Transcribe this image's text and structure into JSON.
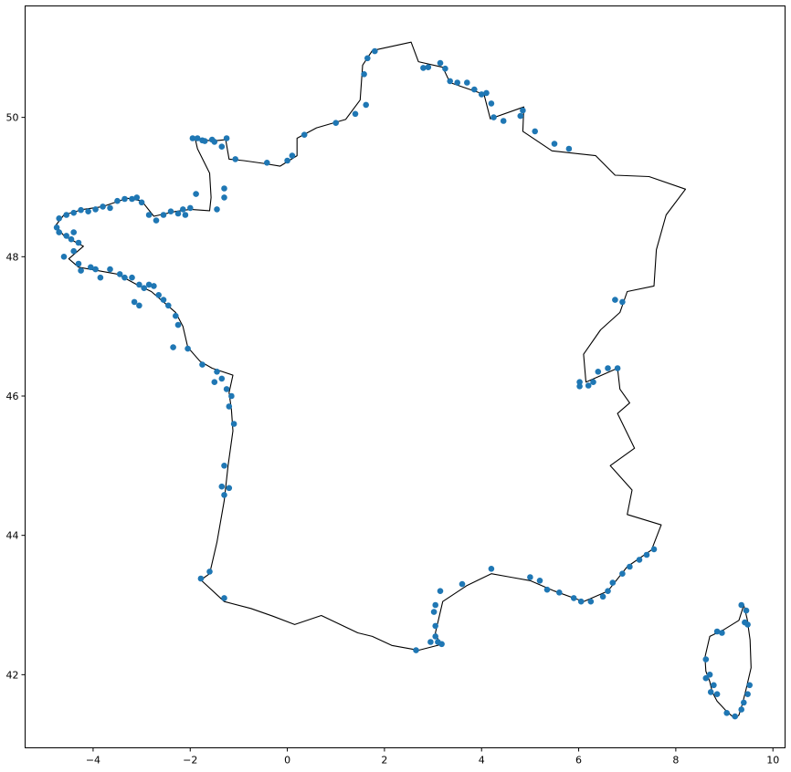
{
  "chart_data": {
    "type": "scatter",
    "title": "",
    "xlabel": "",
    "ylabel": "",
    "xlim": [
      -5.4,
      10.25
    ],
    "ylim": [
      40.95,
      51.6
    ],
    "xticks": [
      -4,
      -2,
      0,
      2,
      4,
      6,
      8,
      10
    ],
    "yticks": [
      42,
      44,
      46,
      48,
      50
    ],
    "grid": false,
    "legend": "none",
    "marker_color": "#1f77b4",
    "outline_color": "#000000",
    "outlines": [
      {
        "name": "mainland",
        "points": [
          [
            -1.78,
            43.36
          ],
          [
            -1.6,
            43.45
          ],
          [
            -1.45,
            43.9
          ],
          [
            -1.3,
            44.5
          ],
          [
            -1.22,
            45.0
          ],
          [
            -1.12,
            45.5
          ],
          [
            -1.15,
            45.8
          ],
          [
            -1.2,
            46.05
          ],
          [
            -1.12,
            46.3
          ],
          [
            -1.55,
            46.4
          ],
          [
            -1.8,
            46.5
          ],
          [
            -2.05,
            46.7
          ],
          [
            -2.15,
            47.0
          ],
          [
            -2.3,
            47.2
          ],
          [
            -2.55,
            47.35
          ],
          [
            -2.8,
            47.5
          ],
          [
            -3.1,
            47.6
          ],
          [
            -3.5,
            47.75
          ],
          [
            -3.9,
            47.8
          ],
          [
            -4.3,
            47.85
          ],
          [
            -4.5,
            47.97
          ],
          [
            -4.2,
            48.15
          ],
          [
            -4.6,
            48.3
          ],
          [
            -4.77,
            48.45
          ],
          [
            -4.6,
            48.6
          ],
          [
            -4.2,
            48.68
          ],
          [
            -3.8,
            48.72
          ],
          [
            -3.3,
            48.84
          ],
          [
            -3.0,
            48.8
          ],
          [
            -2.75,
            48.58
          ],
          [
            -2.3,
            48.65
          ],
          [
            -2.0,
            48.68
          ],
          [
            -1.6,
            48.66
          ],
          [
            -1.57,
            48.85
          ],
          [
            -1.6,
            49.2
          ],
          [
            -1.85,
            49.55
          ],
          [
            -1.9,
            49.7
          ],
          [
            -1.55,
            49.66
          ],
          [
            -1.27,
            49.68
          ],
          [
            -1.2,
            49.4
          ],
          [
            -0.9,
            49.38
          ],
          [
            -0.5,
            49.34
          ],
          [
            -0.15,
            49.3
          ],
          [
            0.2,
            49.45
          ],
          [
            0.2,
            49.7
          ],
          [
            0.6,
            49.85
          ],
          [
            1.2,
            49.97
          ],
          [
            1.5,
            50.25
          ],
          [
            1.55,
            50.75
          ],
          [
            1.75,
            50.96
          ],
          [
            2.55,
            51.08
          ],
          [
            2.7,
            50.8
          ],
          [
            3.2,
            50.72
          ],
          [
            3.35,
            50.5
          ],
          [
            4.05,
            50.33
          ],
          [
            4.18,
            49.98
          ],
          [
            4.87,
            50.15
          ],
          [
            4.85,
            49.8
          ],
          [
            5.45,
            49.52
          ],
          [
            6.35,
            49.45
          ],
          [
            6.75,
            49.17
          ],
          [
            7.45,
            49.15
          ],
          [
            8.2,
            48.97
          ],
          [
            7.8,
            48.6
          ],
          [
            7.6,
            48.1
          ],
          [
            7.55,
            47.58
          ],
          [
            7.0,
            47.5
          ],
          [
            6.85,
            47.2
          ],
          [
            6.45,
            46.95
          ],
          [
            6.1,
            46.6
          ],
          [
            6.15,
            46.2
          ],
          [
            6.8,
            46.4
          ],
          [
            6.85,
            46.1
          ],
          [
            7.05,
            45.9
          ],
          [
            6.8,
            45.75
          ],
          [
            7.15,
            45.25
          ],
          [
            6.65,
            45.0
          ],
          [
            7.1,
            44.65
          ],
          [
            7.0,
            44.3
          ],
          [
            7.7,
            44.15
          ],
          [
            7.5,
            43.79
          ],
          [
            7.0,
            43.55
          ],
          [
            6.6,
            43.2
          ],
          [
            6.1,
            43.05
          ],
          [
            5.5,
            43.2
          ],
          [
            5.0,
            43.35
          ],
          [
            4.6,
            43.4
          ],
          [
            4.2,
            43.45
          ],
          [
            3.7,
            43.28
          ],
          [
            3.2,
            43.05
          ],
          [
            3.05,
            42.6
          ],
          [
            3.15,
            42.43
          ],
          [
            2.7,
            42.35
          ],
          [
            2.15,
            42.42
          ],
          [
            1.75,
            42.55
          ],
          [
            1.45,
            42.6
          ],
          [
            0.7,
            42.85
          ],
          [
            0.15,
            42.72
          ],
          [
            -0.3,
            42.84
          ],
          [
            -0.75,
            42.95
          ],
          [
            -1.3,
            43.05
          ],
          [
            -1.78,
            43.36
          ]
        ]
      },
      {
        "name": "corsica",
        "points": [
          [
            9.4,
            43.0
          ],
          [
            9.47,
            42.8
          ],
          [
            9.53,
            42.5
          ],
          [
            9.55,
            42.1
          ],
          [
            9.45,
            41.8
          ],
          [
            9.38,
            41.6
          ],
          [
            9.3,
            41.42
          ],
          [
            9.22,
            41.37
          ],
          [
            9.05,
            41.47
          ],
          [
            8.85,
            41.62
          ],
          [
            8.75,
            41.75
          ],
          [
            8.7,
            41.9
          ],
          [
            8.62,
            42.05
          ],
          [
            8.6,
            42.25
          ],
          [
            8.7,
            42.55
          ],
          [
            9.0,
            42.65
          ],
          [
            9.3,
            42.78
          ],
          [
            9.4,
            43.0
          ]
        ]
      }
    ],
    "points": [
      [
        1.65,
        50.85
      ],
      [
        1.58,
        50.62
      ],
      [
        1.62,
        50.18
      ],
      [
        1.8,
        50.95
      ],
      [
        2.8,
        50.71
      ],
      [
        2.9,
        50.72
      ],
      [
        3.15,
        50.78
      ],
      [
        3.25,
        50.7
      ],
      [
        3.35,
        50.52
      ],
      [
        3.5,
        50.5
      ],
      [
        3.7,
        50.5
      ],
      [
        3.85,
        50.4
      ],
      [
        4.1,
        50.35
      ],
      [
        4.0,
        50.33
      ],
      [
        4.2,
        50.2
      ],
      [
        4.25,
        50.0
      ],
      [
        4.45,
        49.95
      ],
      [
        4.85,
        50.1
      ],
      [
        4.8,
        50.02
      ],
      [
        5.1,
        49.8
      ],
      [
        5.5,
        49.62
      ],
      [
        5.8,
        49.55
      ],
      [
        1.4,
        50.05
      ],
      [
        1.0,
        49.92
      ],
      [
        0.35,
        49.75
      ],
      [
        0.1,
        49.45
      ],
      [
        0.0,
        49.38
      ],
      [
        -0.42,
        49.35
      ],
      [
        -1.07,
        49.4
      ],
      [
        -1.25,
        49.7
      ],
      [
        -1.35,
        49.58
      ],
      [
        -1.55,
        49.68
      ],
      [
        -1.75,
        49.67
      ],
      [
        -1.95,
        49.7
      ],
      [
        -1.85,
        49.7
      ],
      [
        -1.7,
        49.66
      ],
      [
        -1.5,
        49.65
      ],
      [
        -1.3,
        48.85
      ],
      [
        -1.3,
        48.98
      ],
      [
        -1.88,
        48.9
      ],
      [
        -1.45,
        48.68
      ],
      [
        -2.0,
        48.7
      ],
      [
        -2.1,
        48.6
      ],
      [
        -2.15,
        48.68
      ],
      [
        -2.25,
        48.62
      ],
      [
        -2.4,
        48.65
      ],
      [
        -2.55,
        48.6
      ],
      [
        -2.7,
        48.52
      ],
      [
        -2.85,
        48.6
      ],
      [
        -3.0,
        48.78
      ],
      [
        -3.1,
        48.85
      ],
      [
        -3.2,
        48.83
      ],
      [
        -3.35,
        48.83
      ],
      [
        -3.5,
        48.8
      ],
      [
        -3.65,
        48.7
      ],
      [
        -3.8,
        48.72
      ],
      [
        -3.95,
        48.68
      ],
      [
        -4.1,
        48.65
      ],
      [
        -4.25,
        48.67
      ],
      [
        -4.4,
        48.63
      ],
      [
        -4.55,
        48.6
      ],
      [
        -4.7,
        48.55
      ],
      [
        -4.75,
        48.42
      ],
      [
        -4.7,
        48.35
      ],
      [
        -4.55,
        48.3
      ],
      [
        -4.45,
        48.25
      ],
      [
        -4.4,
        48.35
      ],
      [
        -4.3,
        48.2
      ],
      [
        -4.6,
        48.0
      ],
      [
        -4.4,
        48.08
      ],
      [
        -4.3,
        47.9
      ],
      [
        -4.25,
        47.8
      ],
      [
        -4.05,
        47.85
      ],
      [
        -3.95,
        47.82
      ],
      [
        -3.85,
        47.7
      ],
      [
        -3.65,
        47.82
      ],
      [
        -3.45,
        47.75
      ],
      [
        -3.35,
        47.7
      ],
      [
        -3.2,
        47.7
      ],
      [
        -3.05,
        47.6
      ],
      [
        -2.95,
        47.55
      ],
      [
        -2.85,
        47.6
      ],
      [
        -2.75,
        47.58
      ],
      [
        -2.65,
        47.45
      ],
      [
        -2.55,
        47.38
      ],
      [
        -2.45,
        47.3
      ],
      [
        -3.15,
        47.35
      ],
      [
        -3.05,
        47.3
      ],
      [
        -2.3,
        47.15
      ],
      [
        -2.25,
        47.02
      ],
      [
        -2.35,
        46.7
      ],
      [
        -2.05,
        46.68
      ],
      [
        -1.75,
        46.45
      ],
      [
        -1.45,
        46.35
      ],
      [
        -1.35,
        46.25
      ],
      [
        -1.5,
        46.2
      ],
      [
        -1.25,
        46.1
      ],
      [
        -1.15,
        46.0
      ],
      [
        -1.2,
        45.85
      ],
      [
        -1.1,
        45.6
      ],
      [
        -1.3,
        45.0
      ],
      [
        -1.35,
        44.7
      ],
      [
        -1.2,
        44.68
      ],
      [
        -1.3,
        44.58
      ],
      [
        -1.6,
        43.48
      ],
      [
        -1.78,
        43.38
      ],
      [
        -1.3,
        43.1
      ],
      [
        3.05,
        43.0
      ],
      [
        3.02,
        42.9
      ],
      [
        3.05,
        42.7
      ],
      [
        3.05,
        42.55
      ],
      [
        3.1,
        42.47
      ],
      [
        3.18,
        42.44
      ],
      [
        2.95,
        42.47
      ],
      [
        2.65,
        42.35
      ],
      [
        3.15,
        43.2
      ],
      [
        3.6,
        43.3
      ],
      [
        4.2,
        43.52
      ],
      [
        5.0,
        43.4
      ],
      [
        5.2,
        43.35
      ],
      [
        5.35,
        43.22
      ],
      [
        5.6,
        43.18
      ],
      [
        5.9,
        43.1
      ],
      [
        6.05,
        43.05
      ],
      [
        6.25,
        43.05
      ],
      [
        6.5,
        43.12
      ],
      [
        6.6,
        43.2
      ],
      [
        6.7,
        43.32
      ],
      [
        6.9,
        43.45
      ],
      [
        7.05,
        43.55
      ],
      [
        7.25,
        43.65
      ],
      [
        7.4,
        43.72
      ],
      [
        7.55,
        43.8
      ],
      [
        6.02,
        46.2
      ],
      [
        6.02,
        46.14
      ],
      [
        6.2,
        46.15
      ],
      [
        6.3,
        46.2
      ],
      [
        6.4,
        46.35
      ],
      [
        6.6,
        46.4
      ],
      [
        6.8,
        46.4
      ],
      [
        6.75,
        47.38
      ],
      [
        6.9,
        47.35
      ],
      [
        8.62,
        42.22
      ],
      [
        8.7,
        42.0
      ],
      [
        8.85,
        42.62
      ],
      [
        8.95,
        42.6
      ],
      [
        9.35,
        43.0
      ],
      [
        9.45,
        42.92
      ],
      [
        9.42,
        42.75
      ],
      [
        9.48,
        42.72
      ],
      [
        9.52,
        41.85
      ],
      [
        9.48,
        41.72
      ],
      [
        9.4,
        41.6
      ],
      [
        9.35,
        41.5
      ],
      [
        9.22,
        41.4
      ],
      [
        9.05,
        41.45
      ],
      [
        8.85,
        41.72
      ],
      [
        8.78,
        41.85
      ],
      [
        8.62,
        41.95
      ],
      [
        8.72,
        41.75
      ]
    ]
  }
}
